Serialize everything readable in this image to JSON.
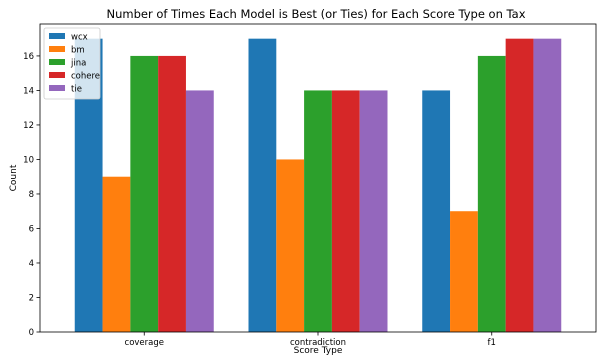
{
  "chart_data": {
    "type": "bar",
    "title": "Number of Times Each Model is Best (or Ties) for Each Score Type on Tax",
    "xlabel": "Score Type",
    "ylabel": "Count",
    "categories": [
      "coverage",
      "contradiction",
      "f1"
    ],
    "ylim": [
      0,
      17.85
    ],
    "yticks": [
      0,
      2,
      4,
      6,
      8,
      10,
      12,
      14,
      16
    ],
    "grid": false,
    "legend_position": "top-left",
    "series": [
      {
        "name": "wcx",
        "color": "#1f77b4",
        "values": [
          17,
          17,
          14
        ]
      },
      {
        "name": "bm",
        "color": "#ff7f0e",
        "values": [
          9,
          10,
          7
        ]
      },
      {
        "name": "jina",
        "color": "#2ca02c",
        "values": [
          16,
          14,
          16
        ]
      },
      {
        "name": "cohere",
        "color": "#d62728",
        "values": [
          16,
          14,
          17
        ]
      },
      {
        "name": "tie",
        "color": "#9467bd",
        "values": [
          14,
          14,
          17
        ]
      }
    ]
  }
}
